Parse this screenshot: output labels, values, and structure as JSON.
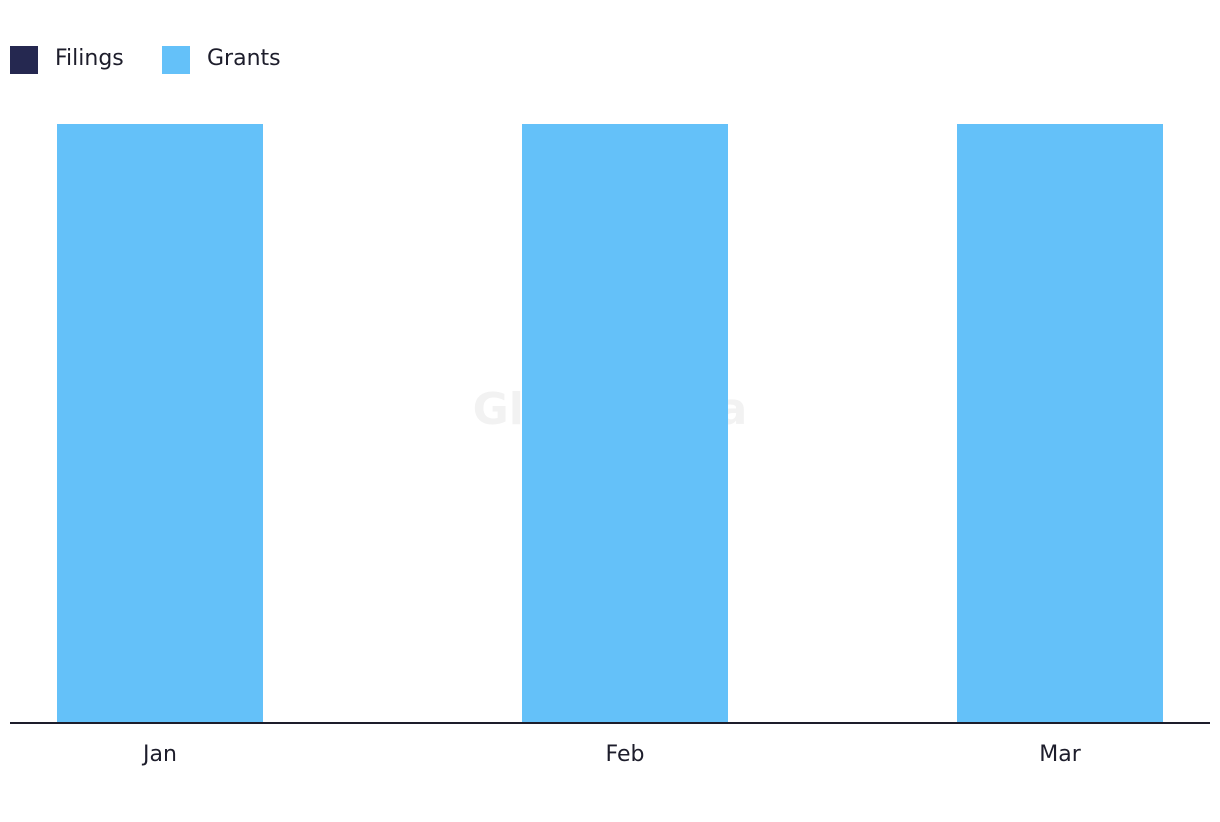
{
  "chart_data": {
    "type": "bar",
    "stacked": true,
    "watermark": "GlobalData",
    "categories": [
      "Jan",
      "Feb",
      "Mar"
    ],
    "series": [
      {
        "name": "Filings",
        "color": "#252850",
        "values": [
          0,
          0,
          0
        ]
      },
      {
        "name": "Grants",
        "color": "#64c1f9",
        "values": [
          100,
          100,
          100
        ]
      }
    ],
    "ylim": [
      0,
      100
    ],
    "legend": "top-left"
  }
}
